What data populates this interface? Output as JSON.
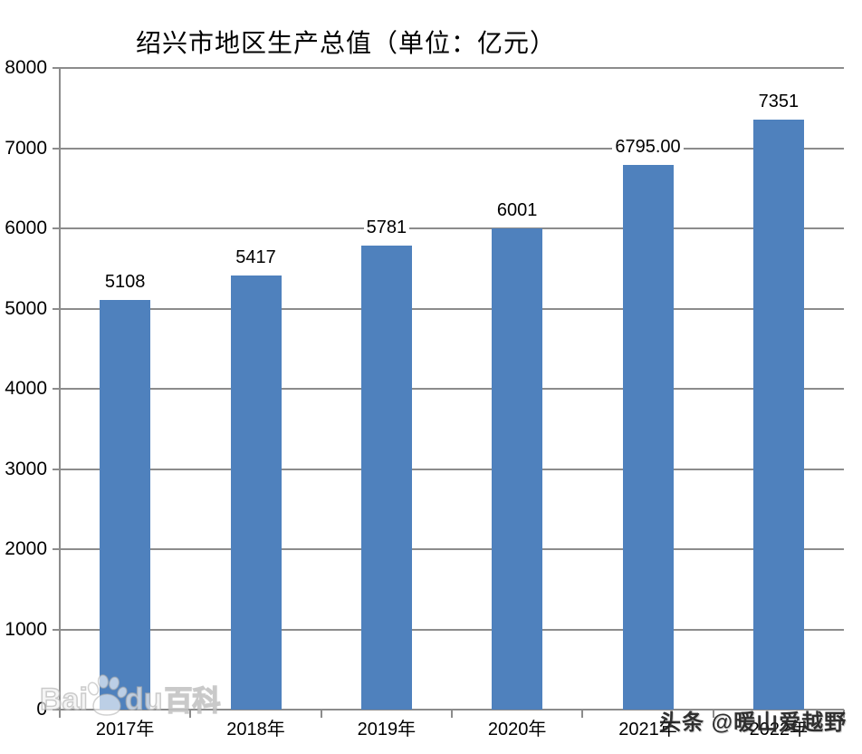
{
  "chart_data": {
    "type": "bar",
    "title": "绍兴市地区生产总值（单位：亿元）",
    "xlabel": "",
    "ylabel": "",
    "categories": [
      "2017年",
      "2018年",
      "2019年",
      "2020年",
      "2021年",
      "2022年"
    ],
    "values": [
      5108,
      5417,
      5781,
      6001,
      6795,
      7351
    ],
    "value_labels": [
      "5108",
      "5417",
      "5781",
      "6001",
      "6795.00",
      "7351"
    ],
    "ylim": [
      0,
      8000
    ],
    "yticks": [
      0,
      1000,
      2000,
      3000,
      4000,
      5000,
      6000,
      7000,
      8000
    ],
    "grid": true,
    "legend_position": "none",
    "bar_color": "#4F81BD",
    "gridline_color": "#8C8C8C",
    "axis_color": "#8C8C8C",
    "label_color": "#000000",
    "background_color": "#FFFFFF"
  },
  "watermarks": {
    "baidu": {
      "latin_prefix": "Bai",
      "latin_suffix": "du",
      "cjk": "百科",
      "icon": "paw-icon"
    },
    "toutiao": {
      "text": "头条 @暖山爱越野"
    }
  }
}
